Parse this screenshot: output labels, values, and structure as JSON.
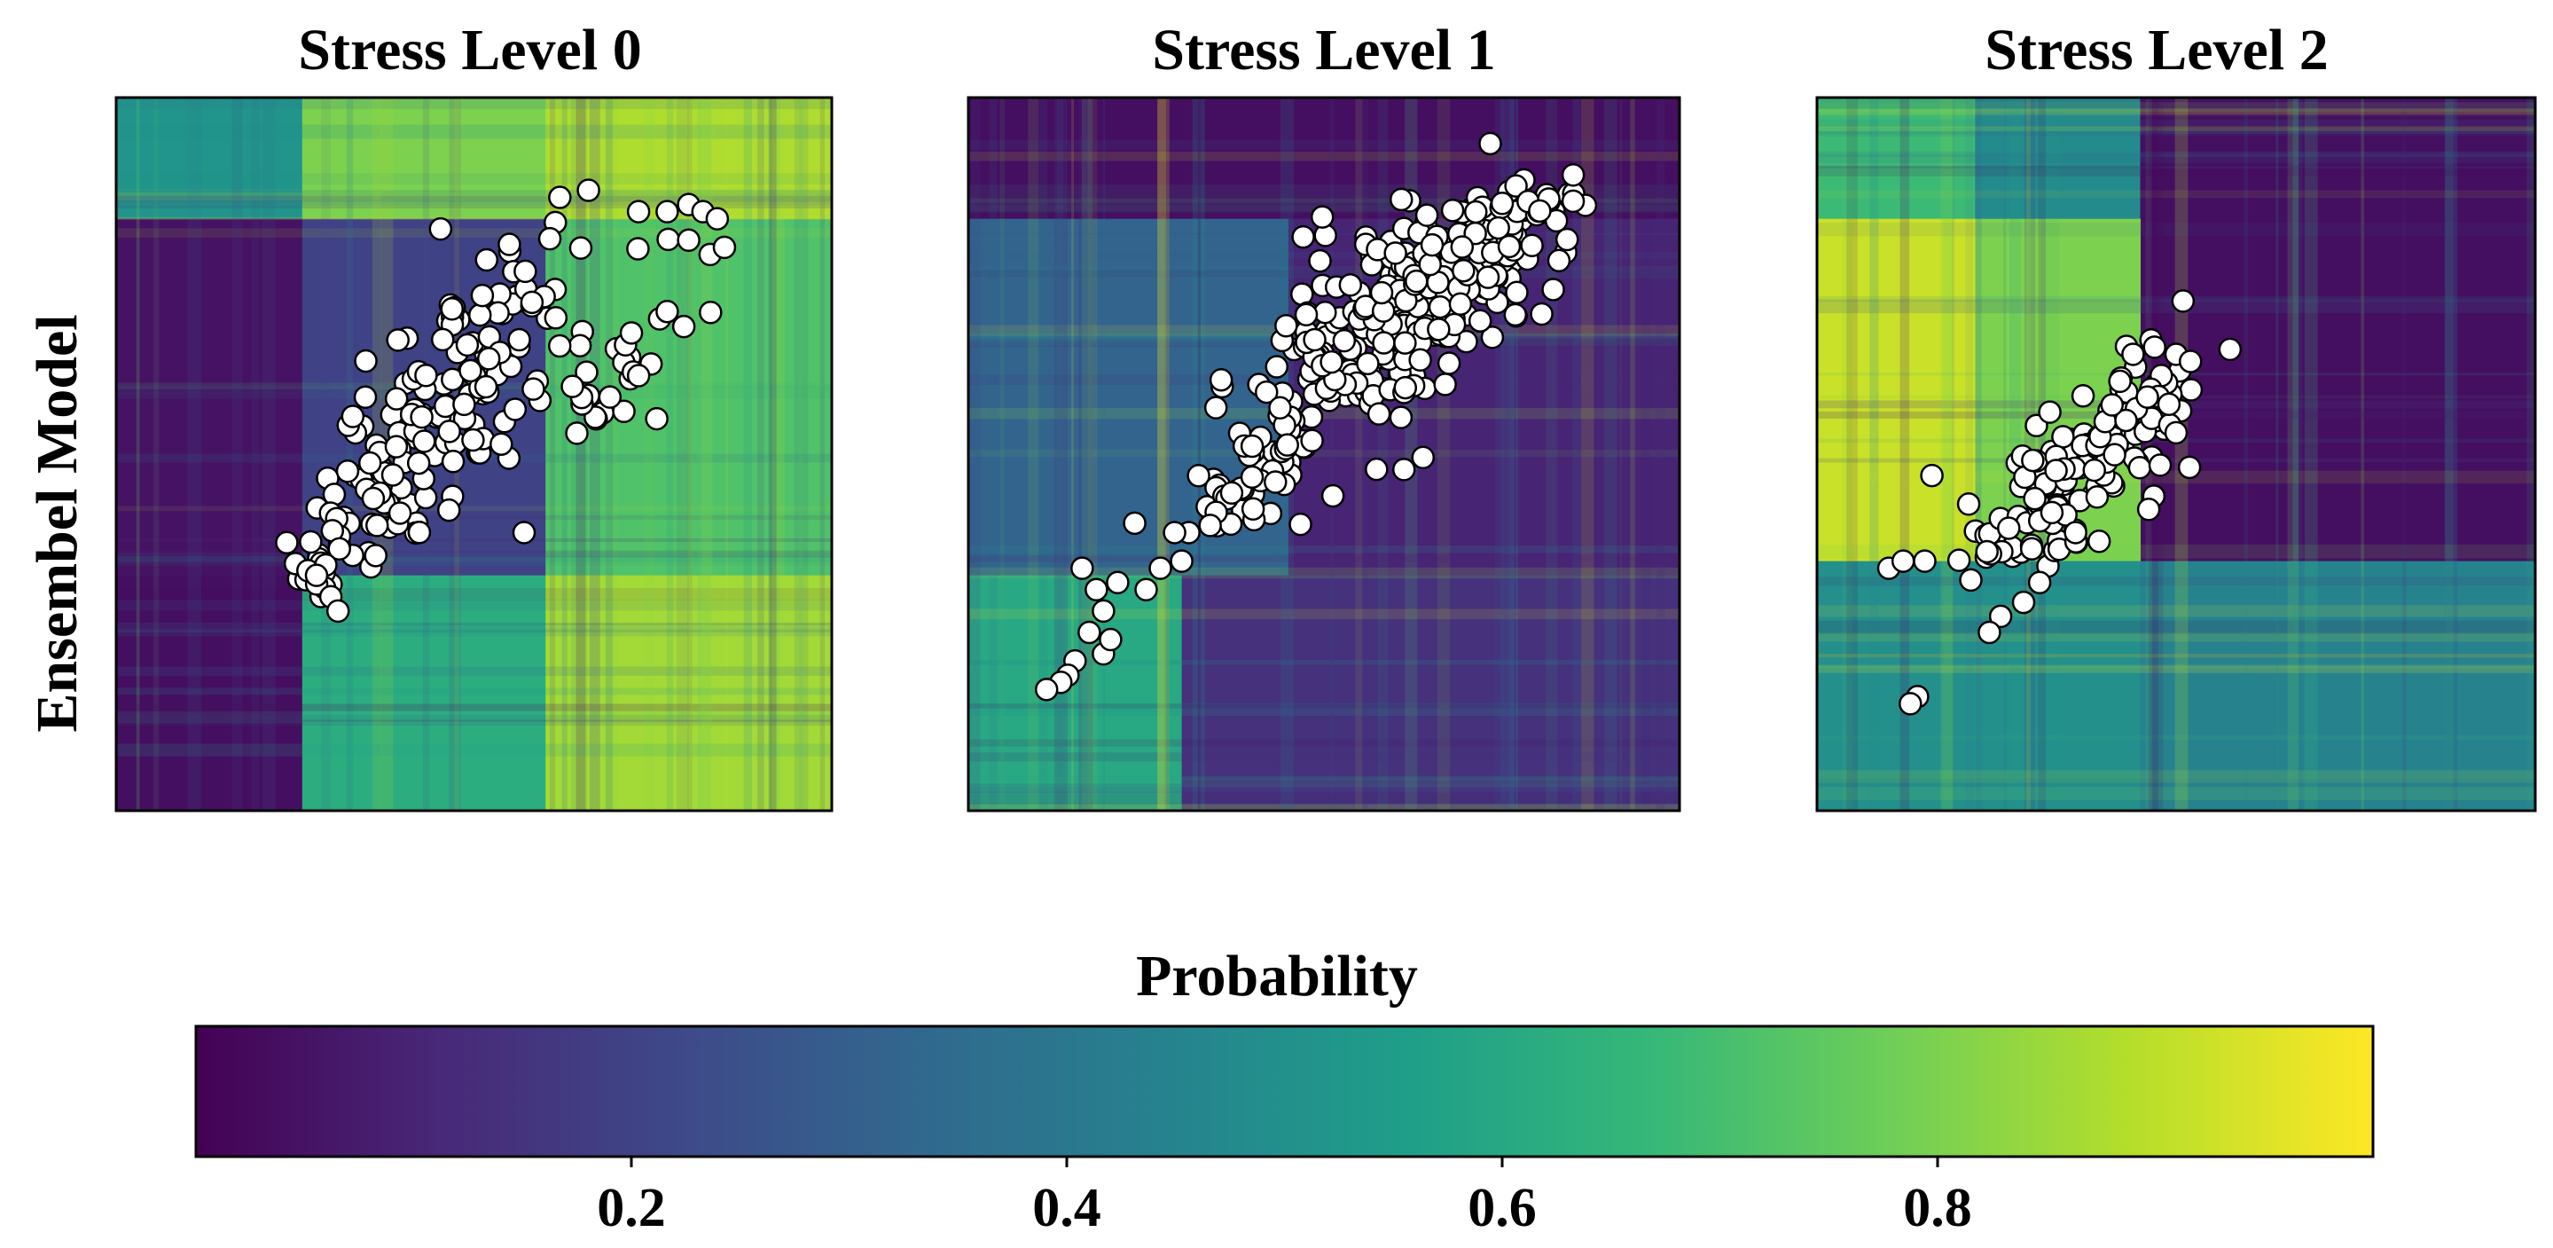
{
  "figure": {
    "row_label": "Ensembel Model",
    "colorbar": {
      "label": "Probability",
      "range": [
        0.0,
        1.0
      ],
      "ticks": [
        0.2,
        0.4,
        0.6,
        0.8
      ],
      "tick_labels": [
        "0.2",
        "0.4",
        "0.6",
        "0.8"
      ],
      "colormap": "viridis",
      "stops": [
        "#440154",
        "#482878",
        "#3e4989",
        "#31688e",
        "#26828e",
        "#1f9e89",
        "#35b779",
        "#6ece58",
        "#b5de2b",
        "#fde725"
      ]
    }
  },
  "chart_data": [
    {
      "type": "heatmap",
      "title": "Stress Level 0",
      "xlabel": "",
      "ylabel": "Ensembel Model",
      "xlim": [
        0,
        1
      ],
      "ylim": [
        0,
        1
      ],
      "colormap": "viridis",
      "grid": false,
      "region_probabilities": [
        {
          "x": [
            0.0,
            0.26
          ],
          "y": [
            0.83,
            1.0
          ],
          "value": 0.52
        },
        {
          "x": [
            0.26,
            0.6
          ],
          "y": [
            0.83,
            1.0
          ],
          "value": 0.8
        },
        {
          "x": [
            0.6,
            1.0
          ],
          "y": [
            0.83,
            1.0
          ],
          "value": 0.88
        },
        {
          "x": [
            0.0,
            0.26
          ],
          "y": [
            0.33,
            0.83
          ],
          "value": 0.05
        },
        {
          "x": [
            0.26,
            0.6
          ],
          "y": [
            0.33,
            0.83
          ],
          "value": 0.2
        },
        {
          "x": [
            0.6,
            1.0
          ],
          "y": [
            0.33,
            0.83
          ],
          "value": 0.72
        },
        {
          "x": [
            0.0,
            0.26
          ],
          "y": [
            0.0,
            0.33
          ],
          "value": 0.04
        },
        {
          "x": [
            0.26,
            0.6
          ],
          "y": [
            0.0,
            0.33
          ],
          "value": 0.62
        },
        {
          "x": [
            0.6,
            1.0
          ],
          "y": [
            0.0,
            0.33
          ],
          "value": 0.86
        }
      ],
      "scatter_points": {
        "color": "#ffffff",
        "edgecolor": "#000000",
        "clusters": [
          {
            "center": [
              0.45,
              0.56
            ],
            "spread": [
              0.08,
              0.13
            ],
            "n": 150
          },
          {
            "center": [
              0.67,
              0.62
            ],
            "spread": [
              0.08,
              0.08
            ],
            "n": 30
          },
          {
            "center": [
              0.3,
              0.34
            ],
            "spread": [
              0.04,
              0.03
            ],
            "n": 20
          }
        ],
        "extra_points": [
          [
            0.62,
            0.86
          ],
          [
            0.66,
            0.87
          ],
          [
            0.73,
            0.84
          ],
          [
            0.77,
            0.84
          ],
          [
            0.8,
            0.85
          ],
          [
            0.82,
            0.84
          ],
          [
            0.84,
            0.83
          ],
          [
            0.8,
            0.8
          ],
          [
            0.83,
            0.78
          ],
          [
            0.85,
            0.79
          ],
          [
            0.77,
            0.7
          ],
          [
            0.72,
            0.67
          ],
          [
            0.73,
            0.61
          ],
          [
            0.69,
            0.58
          ],
          [
            0.57,
            0.39
          ],
          [
            0.28,
            0.33
          ],
          [
            0.3,
            0.3
          ],
          [
            0.31,
            0.28
          ]
        ]
      }
    },
    {
      "type": "heatmap",
      "title": "Stress Level 1",
      "xlabel": "",
      "ylabel": "",
      "xlim": [
        0,
        1
      ],
      "ylim": [
        0,
        1
      ],
      "colormap": "viridis",
      "grid": false,
      "region_probabilities": [
        {
          "x": [
            0.0,
            1.0
          ],
          "y": [
            0.83,
            1.0
          ],
          "value": 0.04
        },
        {
          "x": [
            0.0,
            0.45
          ],
          "y": [
            0.33,
            0.83
          ],
          "value": 0.32
        },
        {
          "x": [
            0.45,
            1.0
          ],
          "y": [
            0.33,
            0.83
          ],
          "value": 0.1
        },
        {
          "x": [
            0.0,
            0.3
          ],
          "y": [
            0.0,
            0.33
          ],
          "value": 0.6
        },
        {
          "x": [
            0.3,
            1.0
          ],
          "y": [
            0.0,
            0.33
          ],
          "value": 0.14
        }
      ],
      "scatter_points": {
        "color": "#ffffff",
        "edgecolor": "#000000",
        "clusters": [
          {
            "center": [
              0.58,
              0.67
            ],
            "spread": [
              0.11,
              0.09
            ],
            "n": 200
          },
          {
            "center": [
              0.72,
              0.78
            ],
            "spread": [
              0.1,
              0.06
            ],
            "n": 120
          },
          {
            "center": [
              0.4,
              0.47
            ],
            "spread": [
              0.05,
              0.06
            ],
            "n": 40
          }
        ],
        "extra_points": [
          [
            0.16,
            0.34
          ],
          [
            0.18,
            0.31
          ],
          [
            0.21,
            0.32
          ],
          [
            0.25,
            0.31
          ],
          [
            0.27,
            0.34
          ],
          [
            0.3,
            0.35
          ],
          [
            0.31,
            0.39
          ],
          [
            0.34,
            0.4
          ],
          [
            0.19,
            0.22
          ],
          [
            0.2,
            0.24
          ],
          [
            0.17,
            0.25
          ],
          [
            0.15,
            0.21
          ],
          [
            0.14,
            0.19
          ],
          [
            0.13,
            0.18
          ],
          [
            0.11,
            0.17
          ],
          [
            0.19,
            0.28
          ],
          [
            0.29,
            0.39
          ]
        ]
      }
    },
    {
      "type": "heatmap",
      "title": "Stress Level 2",
      "xlabel": "",
      "ylabel": "",
      "xlim": [
        0,
        1
      ],
      "ylim": [
        0,
        1
      ],
      "colormap": "viridis",
      "grid": false,
      "region_probabilities": [
        {
          "x": [
            0.0,
            0.22
          ],
          "y": [
            0.83,
            1.0
          ],
          "value": 0.68
        },
        {
          "x": [
            0.22,
            0.45
          ],
          "y": [
            0.83,
            1.0
          ],
          "value": 0.48
        },
        {
          "x": [
            0.45,
            1.0
          ],
          "y": [
            0.0,
            1.0
          ],
          "value": 0.04
        },
        {
          "x": [
            0.0,
            0.22
          ],
          "y": [
            0.35,
            0.83
          ],
          "value": 0.92
        },
        {
          "x": [
            0.22,
            0.45
          ],
          "y": [
            0.35,
            0.83
          ],
          "value": 0.8
        },
        {
          "x": [
            0.0,
            0.45
          ],
          "y": [
            0.0,
            0.35
          ],
          "value": 0.5
        },
        {
          "x": [
            0.45,
            1.0
          ],
          "y": [
            0.0,
            0.35
          ],
          "value": 0.45
        }
      ],
      "scatter_points": {
        "color": "#ffffff",
        "edgecolor": "#000000",
        "clusters": [
          {
            "center": [
              0.32,
              0.43
            ],
            "spread": [
              0.08,
              0.05
            ],
            "n": 90
          },
          {
            "center": [
              0.43,
              0.55
            ],
            "spread": [
              0.06,
              0.06
            ],
            "n": 60
          }
        ],
        "extra_points": [
          [
            0.1,
            0.34
          ],
          [
            0.12,
            0.35
          ],
          [
            0.15,
            0.35
          ],
          [
            0.16,
            0.47
          ],
          [
            0.24,
            0.25
          ],
          [
            0.14,
            0.16
          ],
          [
            0.13,
            0.15
          ],
          [
            0.44,
            0.64
          ],
          [
            0.47,
            0.65
          ],
          [
            0.5,
            0.64
          ],
          [
            0.52,
            0.63
          ],
          [
            0.46,
            0.58
          ],
          [
            0.49,
            0.57
          ],
          [
            0.5,
            0.53
          ],
          [
            0.39,
            0.44
          ],
          [
            0.36,
            0.39
          ],
          [
            0.31,
            0.32
          ]
        ]
      }
    }
  ]
}
